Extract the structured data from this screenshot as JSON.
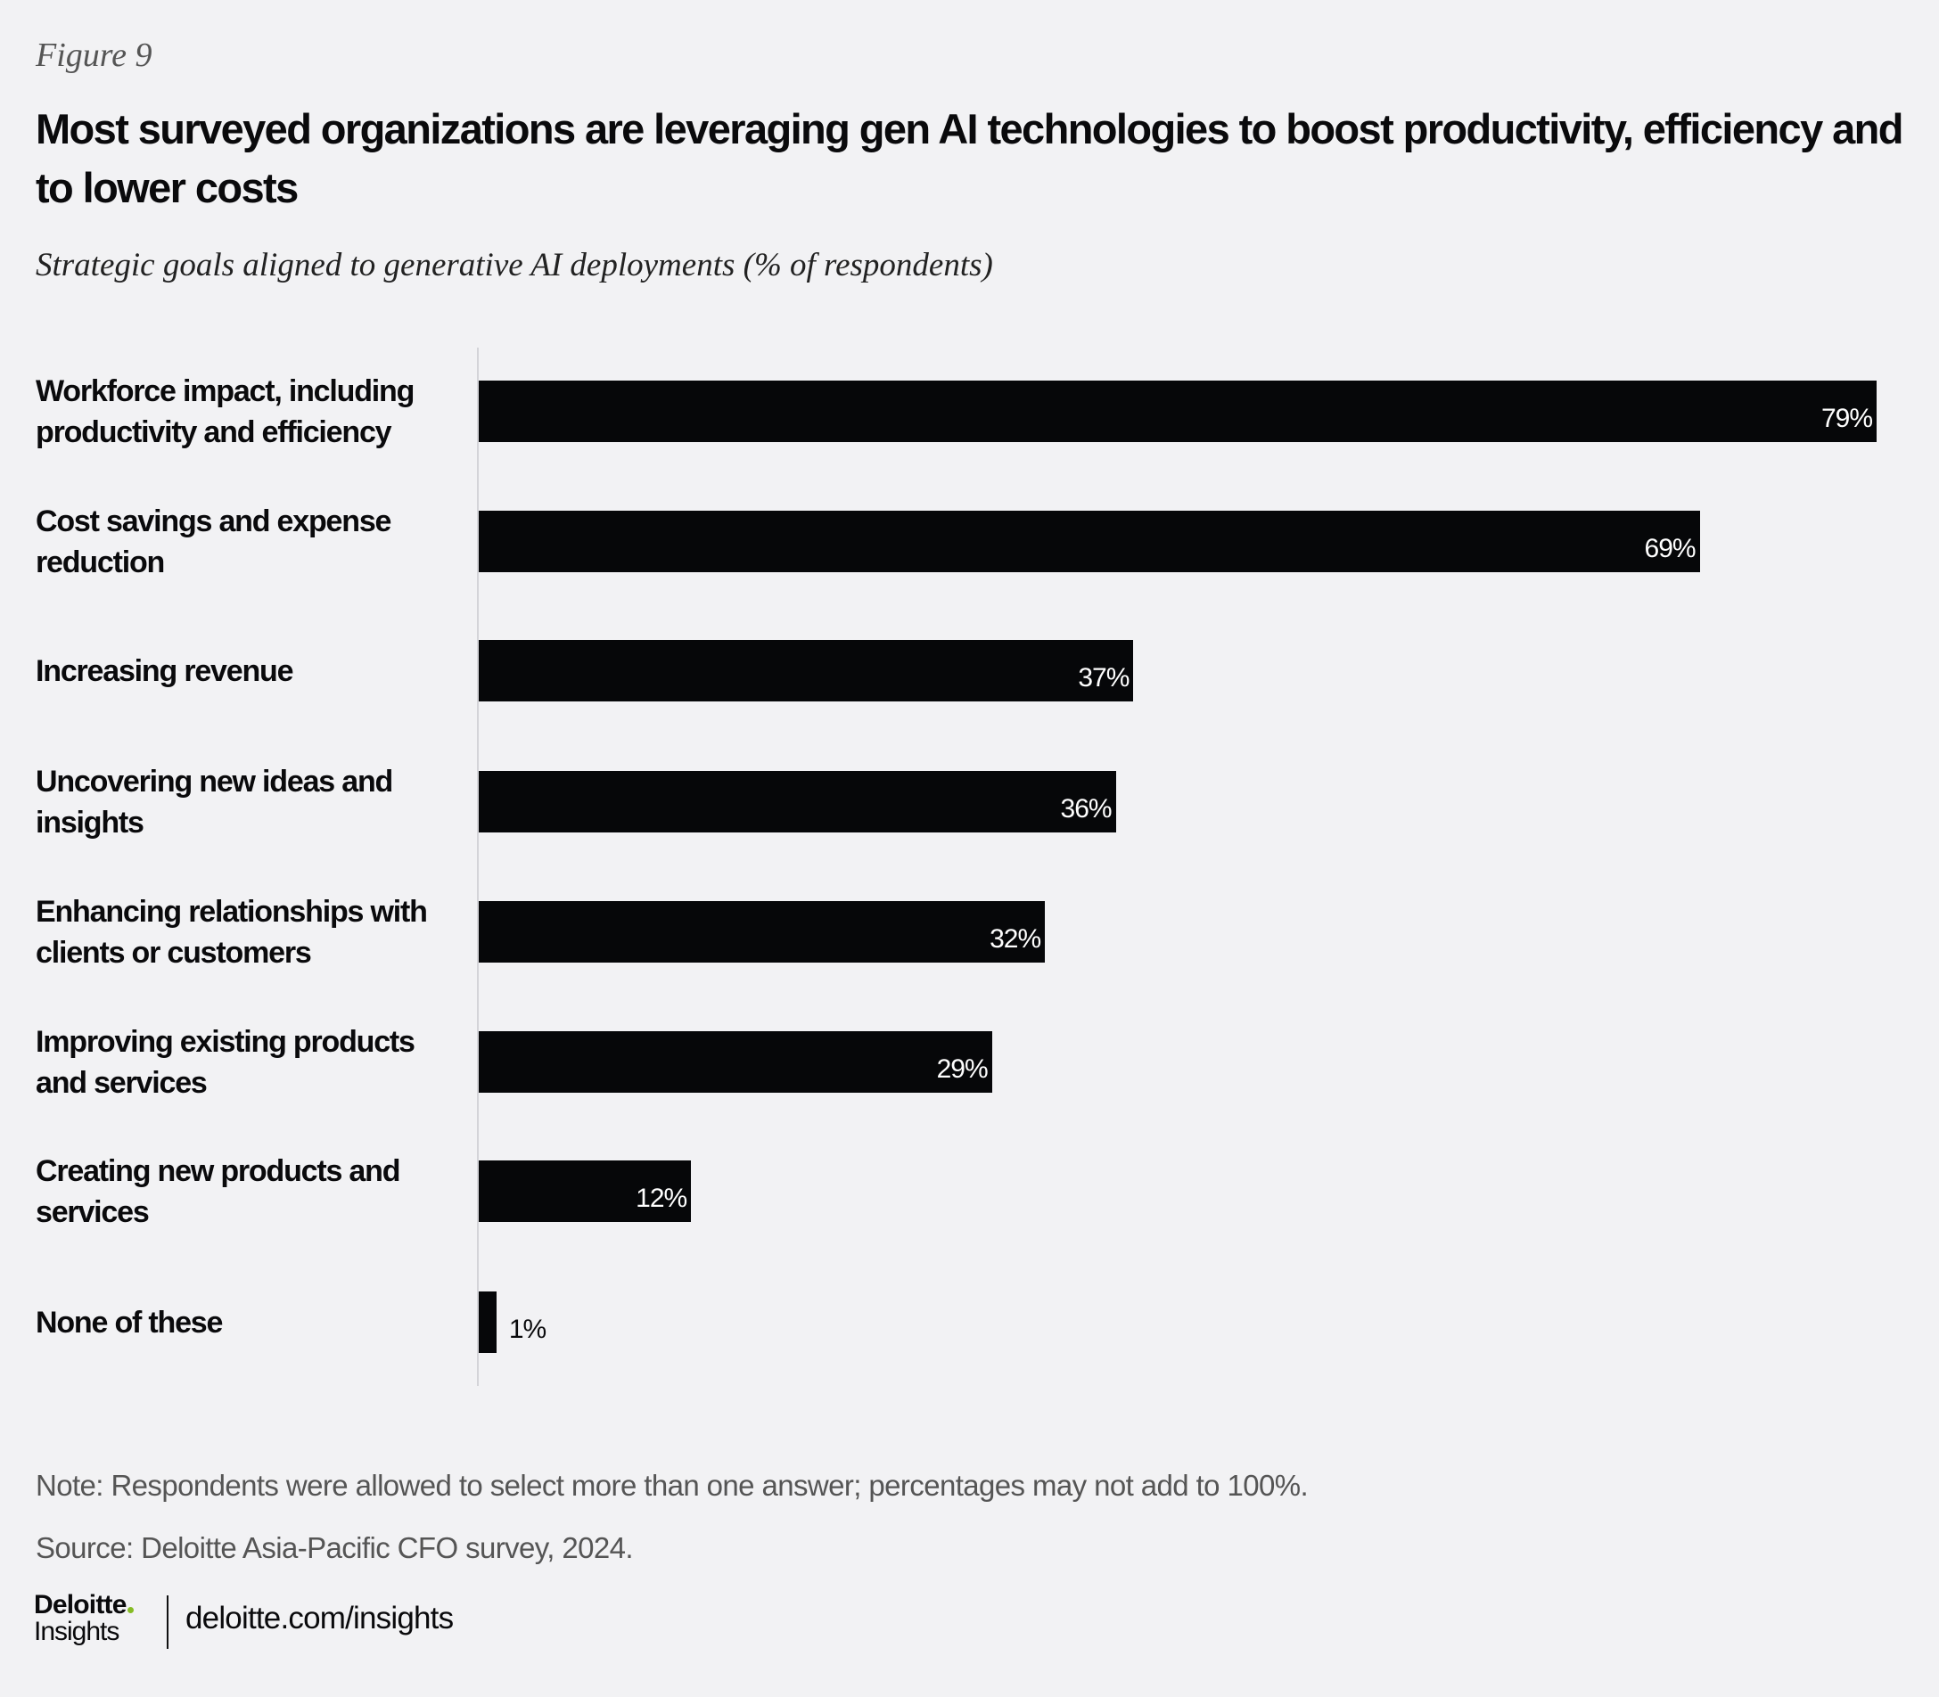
{
  "figure_label": "Figure 9",
  "title": "Most surveyed organizations are leveraging gen AI technologies to boost productivity, efficiency and to lower costs",
  "subtitle": "Strategic goals aligned to generative AI deployments (% of respondents)",
  "chart_data": {
    "type": "bar",
    "orientation": "horizontal",
    "categories": [
      "Workforce impact, including productivity and efficiency",
      "Cost savings and expense reduction",
      "Increasing revenue",
      "Uncovering new ideas and insights",
      "Enhancing relationships with clients or customers",
      "Improving existing products and services",
      "Creating new products and services",
      "None of these"
    ],
    "values": [
      79,
      69,
      37,
      36,
      32,
      29,
      12,
      1
    ],
    "labels": [
      "79%",
      "69%",
      "37%",
      "36%",
      "32%",
      "29%",
      "12%",
      "1%"
    ],
    "xlim": [
      0,
      79
    ],
    "grid": false,
    "bar_color": "#060709"
  },
  "note": "Note: Respondents were allowed to select more than one answer; percentages may not add to 100%.",
  "source": "Source: Deloitte Asia-Pacific CFO survey, 2024.",
  "footer": {
    "logo_brand": "Deloitte",
    "logo_sub": "Insights",
    "url": "deloitte.com/insights",
    "logo_dot_color": "#86bc25"
  }
}
